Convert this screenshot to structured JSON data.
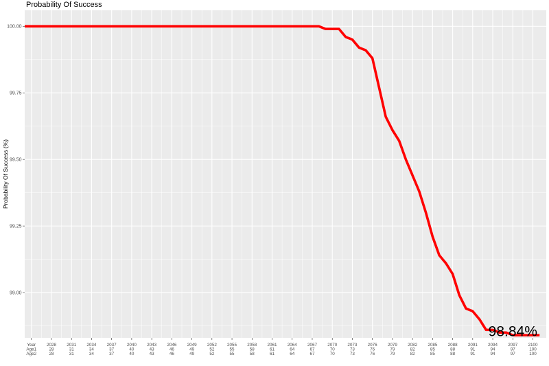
{
  "chart_data": {
    "type": "line",
    "title": "Probability Of Success",
    "ylabel": "Probability Of Success (%)",
    "xlabel": "",
    "ylim": [
      98.83,
      100.06
    ],
    "xlim": [
      2024,
      2102
    ],
    "y_ticks": [
      99.0,
      99.25,
      99.5,
      99.75,
      100.0
    ],
    "y_tick_labels": [
      "99.00",
      "99.25",
      "99.50",
      "99.75",
      "100.00"
    ],
    "x_tick_rows": [
      "Year",
      "Age1",
      "Age2"
    ],
    "x_ticks": [
      {
        "year": 2028,
        "age1": 28,
        "age2": 28
      },
      {
        "year": 2031,
        "age1": 31,
        "age2": 31
      },
      {
        "year": 2034,
        "age1": 34,
        "age2": 34
      },
      {
        "year": 2037,
        "age1": 37,
        "age2": 37
      },
      {
        "year": 2040,
        "age1": 40,
        "age2": 40
      },
      {
        "year": 2043,
        "age1": 43,
        "age2": 43
      },
      {
        "year": 2046,
        "age1": 46,
        "age2": 46
      },
      {
        "year": 2049,
        "age1": 49,
        "age2": 49
      },
      {
        "year": 2052,
        "age1": 52,
        "age2": 52
      },
      {
        "year": 2055,
        "age1": 55,
        "age2": 55
      },
      {
        "year": 2058,
        "age1": 58,
        "age2": 58
      },
      {
        "year": 2061,
        "age1": 61,
        "age2": 61
      },
      {
        "year": 2064,
        "age1": 64,
        "age2": 64
      },
      {
        "year": 2067,
        "age1": 67,
        "age2": 67
      },
      {
        "year": 2070,
        "age1": 70,
        "age2": 70
      },
      {
        "year": 2073,
        "age1": 73,
        "age2": 73
      },
      {
        "year": 2076,
        "age1": 76,
        "age2": 76
      },
      {
        "year": 2079,
        "age1": 79,
        "age2": 79
      },
      {
        "year": 2082,
        "age1": 82,
        "age2": 82
      },
      {
        "year": 2085,
        "age1": 85,
        "age2": 85
      },
      {
        "year": 2088,
        "age1": 88,
        "age2": 88
      },
      {
        "year": 2091,
        "age1": 91,
        "age2": 91
      },
      {
        "year": 2094,
        "age1": 94,
        "age2": 94
      },
      {
        "year": 2097,
        "age1": 97,
        "age2": 97
      },
      {
        "year": 2100,
        "age1": 100,
        "age2": 100
      }
    ],
    "series": [
      {
        "color": "#ff0000",
        "x": [
          2024,
          2025,
          2026,
          2027,
          2028,
          2029,
          2030,
          2031,
          2032,
          2033,
          2034,
          2035,
          2036,
          2037,
          2038,
          2039,
          2040,
          2041,
          2042,
          2043,
          2044,
          2045,
          2046,
          2047,
          2048,
          2049,
          2050,
          2051,
          2052,
          2053,
          2054,
          2055,
          2056,
          2057,
          2058,
          2059,
          2060,
          2061,
          2062,
          2063,
          2064,
          2065,
          2066,
          2067,
          2068,
          2069,
          2070,
          2071,
          2072,
          2073,
          2074,
          2075,
          2076,
          2077,
          2078,
          2079,
          2080,
          2081,
          2082,
          2083,
          2084,
          2085,
          2086,
          2087,
          2088,
          2089,
          2090,
          2091,
          2092,
          2093,
          2094,
          2095,
          2096,
          2097,
          2098,
          2099,
          2100,
          2101
        ],
        "values": [
          100,
          100,
          100,
          100,
          100,
          100,
          100,
          100,
          100,
          100,
          100,
          100,
          100,
          100,
          100,
          100,
          100,
          100,
          100,
          100,
          100,
          100,
          100,
          100,
          100,
          100,
          100,
          100,
          100,
          100,
          100,
          100,
          100,
          100,
          100,
          100,
          100,
          100,
          100,
          100,
          100,
          100,
          100,
          100,
          100,
          99.99,
          99.99,
          99.99,
          99.96,
          99.95,
          99.92,
          99.91,
          99.88,
          99.77,
          99.66,
          99.61,
          99.57,
          99.5,
          99.44,
          99.38,
          99.3,
          99.21,
          99.14,
          99.11,
          99.07,
          98.99,
          98.94,
          98.93,
          98.9,
          98.86,
          98.86,
          98.85,
          98.85,
          98.84,
          98.84,
          98.84,
          98.84,
          98.84
        ]
      }
    ],
    "annotation": {
      "text": "98.84%",
      "x": 2097,
      "y": 98.84
    },
    "grid": true,
    "background": "#ebebeb",
    "gridline_color": "#ffffff"
  }
}
